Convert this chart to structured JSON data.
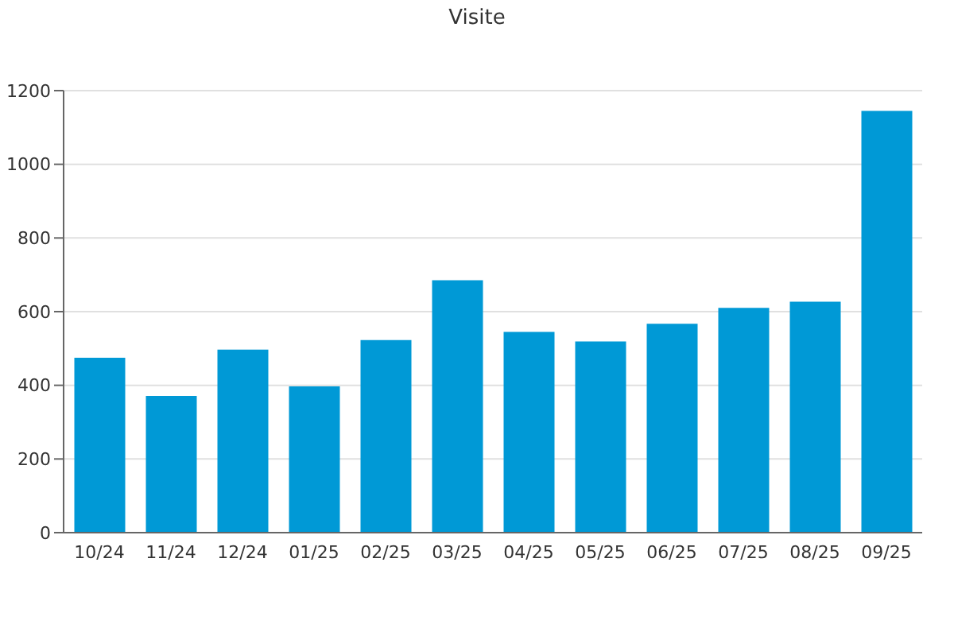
{
  "chart_data": {
    "type": "bar",
    "title": "Visite",
    "categories": [
      "10/24",
      "11/24",
      "12/24",
      "01/25",
      "02/25",
      "03/25",
      "04/25",
      "05/25",
      "06/25",
      "07/25",
      "08/25",
      "09/25"
    ],
    "values": [
      475,
      371,
      497,
      397,
      523,
      685,
      545,
      519,
      567,
      610,
      627,
      1145
    ],
    "color": "#0099d6",
    "ylim": [
      0,
      1200
    ],
    "yticks": [
      0,
      200,
      400,
      600,
      800,
      1000,
      1200
    ],
    "grid": "y",
    "legend": false
  }
}
